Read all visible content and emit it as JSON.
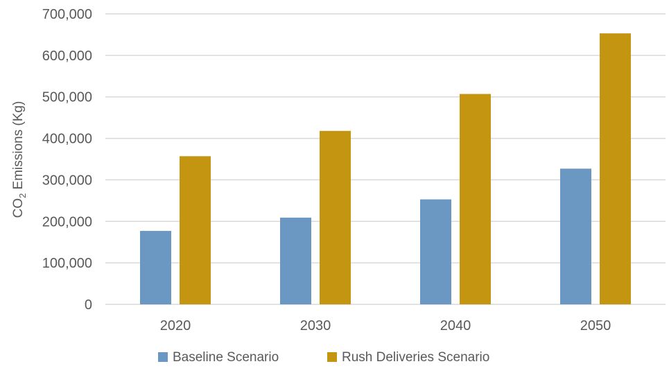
{
  "chart_data": {
    "type": "bar",
    "categories": [
      "2020",
      "2030",
      "2040",
      "2050"
    ],
    "series": [
      {
        "name": "Baseline Scenario",
        "color": "#6b98c3",
        "values": [
          177000,
          209000,
          253000,
          327000
        ]
      },
      {
        "name": "Rush Deliveries Scenario",
        "color": "#c39510",
        "values": [
          357000,
          418000,
          507000,
          653000
        ]
      }
    ],
    "ylabel": {
      "main": "CO",
      "sub": "2",
      "rest": " Emissions (Kg)"
    },
    "ylim": [
      0,
      700000
    ],
    "yticks": [
      0,
      100000,
      200000,
      300000,
      400000,
      500000,
      600000,
      700000
    ],
    "ytick_labels": [
      "0",
      "100,000",
      "200,000",
      "300,000",
      "400,000",
      "500,000",
      "600,000",
      "700,000"
    ],
    "grid": true,
    "gridline_color": "#d9d9d9",
    "legend_position": "bottom"
  }
}
